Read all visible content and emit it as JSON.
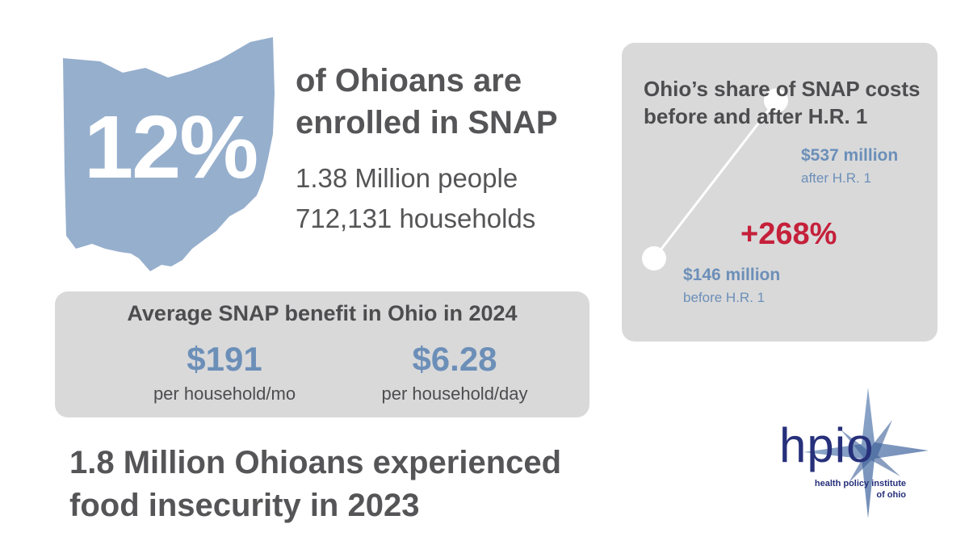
{
  "enrollment": {
    "percent": "12%",
    "title_line1": "of Ohioans are",
    "title_line2": "enrolled in SNAP",
    "people": "1.38 Million people",
    "households": "712,131 households"
  },
  "average_benefit": {
    "title": "Average SNAP benefit in Ohio in 2024",
    "monthly_amount": "$191",
    "monthly_label": "per household/mo",
    "daily_amount": "$6.28",
    "daily_label": "per household/day"
  },
  "food_insecurity": {
    "line1": "1.8 Million Ohioans experienced",
    "line2": "food insecurity in 2023"
  },
  "cost_share": {
    "title_line1": "Ohio’s share of SNAP costs",
    "title_line2": "before and after H.R. 1",
    "change": "+268%"
  },
  "chart_data": {
    "type": "line",
    "title": "Ohio’s share of SNAP costs before and after H.R. 1",
    "categories": [
      "before H.R. 1",
      "after H.R. 1"
    ],
    "values": [
      146,
      537
    ],
    "value_labels": [
      "$146 million",
      "$537 million"
    ],
    "unit": "million dollars",
    "change_label": "+268%"
  },
  "logo": {
    "name": "hpio",
    "line1": "health policy institute",
    "line2": "of ohio"
  },
  "colors": {
    "map": "#96afcd",
    "accent_blue": "#6c8fb8",
    "panel": "#d9d9da",
    "text": "#4d4d4f",
    "change_red": "#c5203a",
    "logo_navy": "#27307a"
  }
}
